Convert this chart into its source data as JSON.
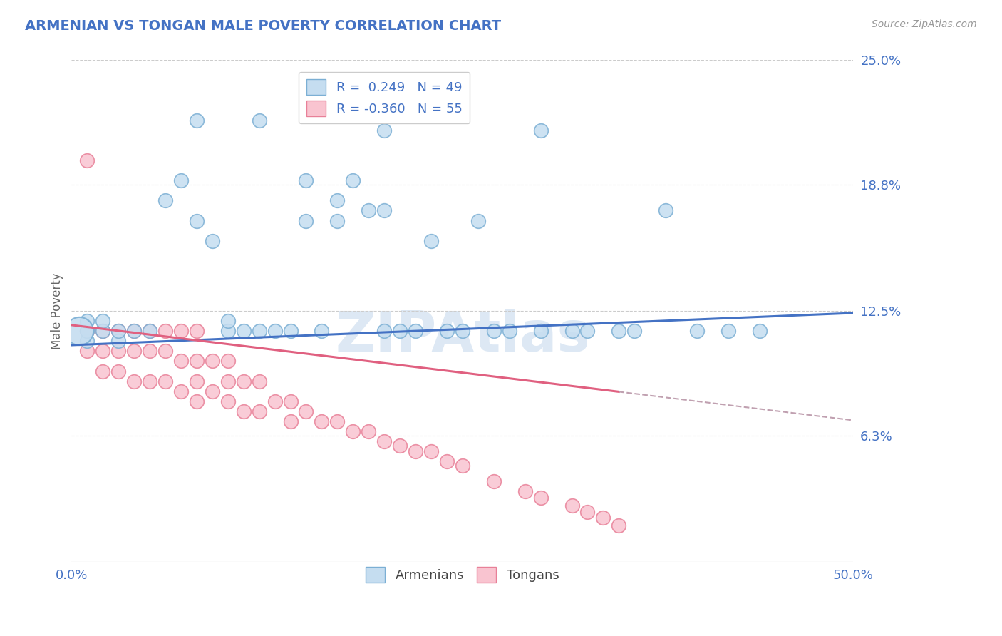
{
  "title": "ARMENIAN VS TONGAN MALE POVERTY CORRELATION CHART",
  "source": "Source: ZipAtlas.com",
  "ylabel": "Male Poverty",
  "xlim": [
    0.0,
    0.5
  ],
  "ylim": [
    0.0,
    0.25
  ],
  "xtick_positions": [
    0.0,
    0.5
  ],
  "xtick_labels": [
    "0.0%",
    "50.0%"
  ],
  "ytick_labels": [
    "6.3%",
    "12.5%",
    "18.8%",
    "25.0%"
  ],
  "ytick_values": [
    0.063,
    0.125,
    0.188,
    0.25
  ],
  "r_armenian": 0.249,
  "n_armenian": 49,
  "r_tongan": -0.36,
  "n_tongan": 55,
  "color_armenian_fill": "#c5ddf0",
  "color_armenian_edge": "#7bafd4",
  "color_tongan_fill": "#f9c4d0",
  "color_tongan_edge": "#e88098",
  "line_color_armenian": "#4472c4",
  "line_color_tongan": "#e06080",
  "line_color_dash": "#c0a0b0",
  "legend_r1": "R =  0.249   N = 49",
  "legend_r2": "R = -0.360   N = 55",
  "legend_armenian": "Armenians",
  "legend_tongan": "Tongans",
  "arm_intercept": 0.108,
  "arm_slope": 0.032,
  "ton_intercept": 0.118,
  "ton_slope": -0.095,
  "armenian_x": [
    0.01,
    0.01,
    0.01,
    0.02,
    0.02,
    0.03,
    0.03,
    0.04,
    0.05,
    0.06,
    0.07,
    0.08,
    0.09,
    0.1,
    0.1,
    0.11,
    0.12,
    0.13,
    0.14,
    0.15,
    0.16,
    0.17,
    0.18,
    0.19,
    0.2,
    0.2,
    0.21,
    0.22,
    0.23,
    0.24,
    0.25,
    0.26,
    0.28,
    0.3,
    0.3,
    0.32,
    0.35,
    0.38,
    0.4,
    0.42,
    0.44,
    0.08,
    0.12,
    0.15,
    0.17,
    0.2,
    0.27,
    0.33,
    0.36
  ],
  "armenian_y": [
    0.11,
    0.115,
    0.12,
    0.115,
    0.12,
    0.11,
    0.115,
    0.115,
    0.115,
    0.18,
    0.19,
    0.17,
    0.16,
    0.115,
    0.12,
    0.115,
    0.115,
    0.115,
    0.115,
    0.19,
    0.115,
    0.17,
    0.19,
    0.175,
    0.115,
    0.215,
    0.115,
    0.115,
    0.16,
    0.115,
    0.115,
    0.17,
    0.115,
    0.115,
    0.215,
    0.115,
    0.115,
    0.175,
    0.115,
    0.115,
    0.115,
    0.22,
    0.22,
    0.17,
    0.18,
    0.175,
    0.115,
    0.115,
    0.115
  ],
  "tongan_x": [
    0.01,
    0.01,
    0.01,
    0.02,
    0.02,
    0.02,
    0.03,
    0.03,
    0.03,
    0.04,
    0.04,
    0.04,
    0.05,
    0.05,
    0.05,
    0.06,
    0.06,
    0.06,
    0.07,
    0.07,
    0.07,
    0.08,
    0.08,
    0.08,
    0.08,
    0.09,
    0.09,
    0.1,
    0.1,
    0.1,
    0.11,
    0.11,
    0.12,
    0.12,
    0.13,
    0.14,
    0.14,
    0.15,
    0.16,
    0.17,
    0.18,
    0.19,
    0.2,
    0.21,
    0.22,
    0.23,
    0.24,
    0.25,
    0.27,
    0.29,
    0.3,
    0.32,
    0.33,
    0.34,
    0.35
  ],
  "tongan_y": [
    0.2,
    0.115,
    0.105,
    0.115,
    0.105,
    0.095,
    0.115,
    0.105,
    0.095,
    0.115,
    0.105,
    0.09,
    0.115,
    0.105,
    0.09,
    0.115,
    0.105,
    0.09,
    0.115,
    0.1,
    0.085,
    0.115,
    0.1,
    0.09,
    0.08,
    0.1,
    0.085,
    0.1,
    0.09,
    0.08,
    0.09,
    0.075,
    0.09,
    0.075,
    0.08,
    0.08,
    0.07,
    0.075,
    0.07,
    0.07,
    0.065,
    0.065,
    0.06,
    0.058,
    0.055,
    0.055,
    0.05,
    0.048,
    0.04,
    0.035,
    0.032,
    0.028,
    0.025,
    0.022,
    0.018
  ]
}
